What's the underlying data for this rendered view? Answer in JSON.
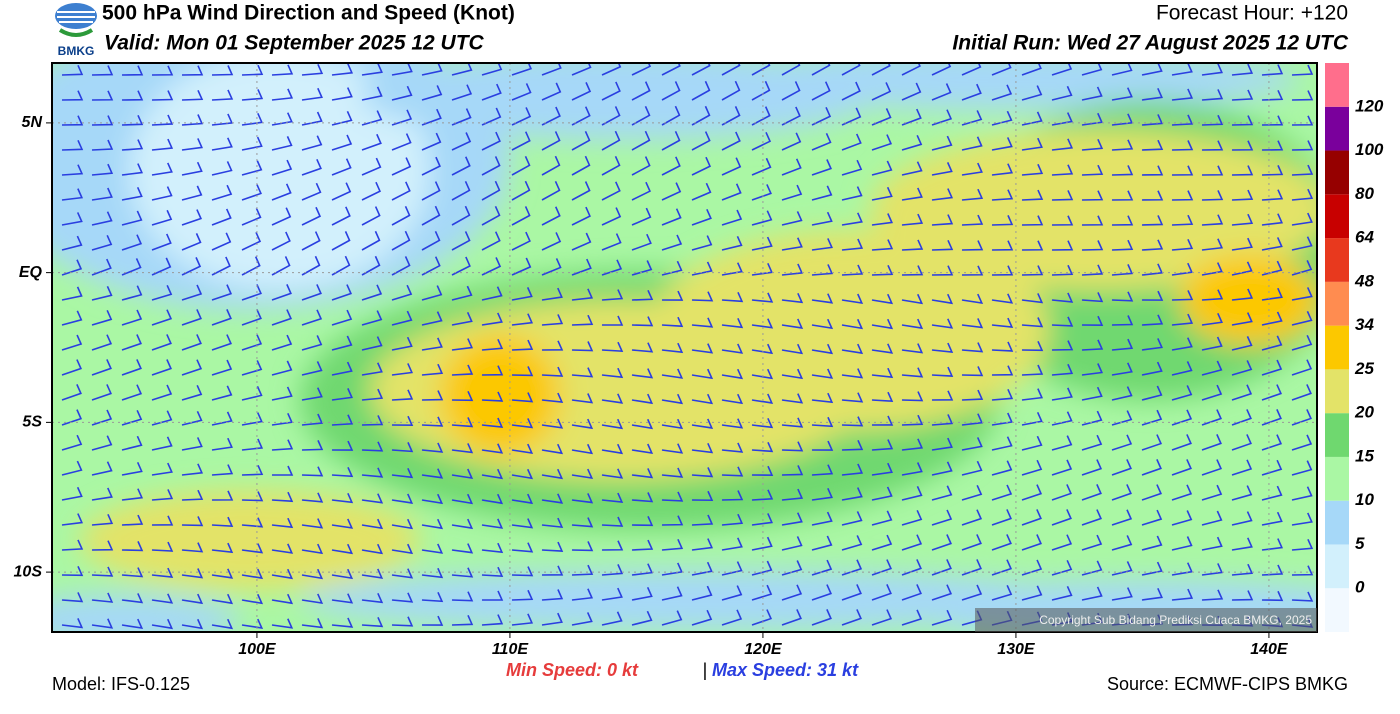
{
  "header": {
    "title": "500 hPa Wind Direction and Speed (Knot)",
    "valid": "Valid: Mon 01 September 2025 12 UTC",
    "forecast_hour": "Forecast Hour: +120",
    "initial_run": "Initial Run: Wed 27 August 2025 12 UTC",
    "logo": "BMKG"
  },
  "map": {
    "lat_ticks": [
      {
        "value": 5,
        "label": "5N"
      },
      {
        "value": 0,
        "label": "EQ"
      },
      {
        "value": -5,
        "label": "5S"
      },
      {
        "value": -10,
        "label": "10S"
      }
    ],
    "lon_ticks": [
      {
        "value": 100,
        "label": "100E"
      },
      {
        "value": 110,
        "label": "110E"
      },
      {
        "value": 120,
        "label": "120E"
      },
      {
        "value": 130,
        "label": "130E"
      },
      {
        "value": 140,
        "label": "140E"
      }
    ],
    "copyright": "Copyright Sub Bidang Prediksi Cuaca BMKG, 2025"
  },
  "colorbar": {
    "levels": [
      0,
      5,
      10,
      15,
      20,
      25,
      34,
      48,
      64,
      80,
      100,
      120
    ],
    "colors": [
      "#f2f9ff",
      "#d2f0fc",
      "#a6d8f8",
      "#aaf7a4",
      "#6fd86f",
      "#e3e368",
      "#fcc800",
      "#ff8c50",
      "#e8391e",
      "#c80000",
      "#960000",
      "#7a009c",
      "#ff6e8c"
    ]
  },
  "footer": {
    "min_speed": "Min Speed:   0 kt",
    "separator": "|",
    "max_speed": "Max Speed:  31 kt",
    "model": "Model: IFS-0.125",
    "source": "Source: ECMWF-CIPS BMKG"
  }
}
